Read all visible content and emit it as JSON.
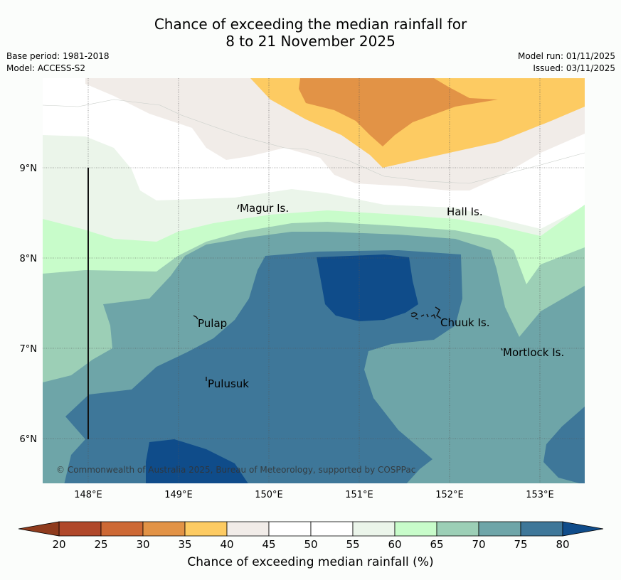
{
  "header": {
    "title_line1": "Chance of exceeding the median rainfall for",
    "title_line2": "8 to 21 November 2025",
    "base_period": "Base period: 1981-2018",
    "model": "Model: ACCESS-S2",
    "model_run": "Model run: 01/11/2025",
    "issued": "Issued: 03/11/2025"
  },
  "map": {
    "lon_labels": [
      "148°E",
      "149°E",
      "150°E",
      "151°E",
      "152°E",
      "153°E"
    ],
    "lat_labels": [
      "9°N",
      "8°N",
      "7°N",
      "6°N"
    ],
    "places": [
      "Magur Is.",
      "Hall Is.",
      "Pulap",
      "Chuuk Is.",
      "Mortlock Is.",
      "Pulusuk"
    ],
    "copyright": "© Commonwealth of Australia 2025, Bureau of Meteorology, supported by COSPPac"
  },
  "colorbar": {
    "ticks": [
      "20",
      "25",
      "30",
      "35",
      "40",
      "45",
      "50",
      "55",
      "60",
      "65",
      "70",
      "75",
      "80"
    ],
    "under_color": "#8f3b1d",
    "over_color": "#0f4c8a",
    "colors": [
      "#b0482a",
      "#cd6935",
      "#e29346",
      "#fdcb62",
      "#f1ece8",
      "#ffffff",
      "#ffffff",
      "#ebf5ea",
      "#c8fcca",
      "#9ccfb6",
      "#6ea5a8",
      "#3e7799"
    ],
    "label": "Chance of exceeding median rainfall (%)"
  },
  "colors": {
    "c35": "#fdcb62",
    "c30": "#e29346",
    "c40": "#f1ece8",
    "c45": "#ffffff",
    "c55": "#ebf5ea",
    "c60": "#c8fcca",
    "c65": "#9ccfb6",
    "c70": "#6ea5a8",
    "c75": "#3e7799",
    "c80": "#0f4c8a"
  }
}
